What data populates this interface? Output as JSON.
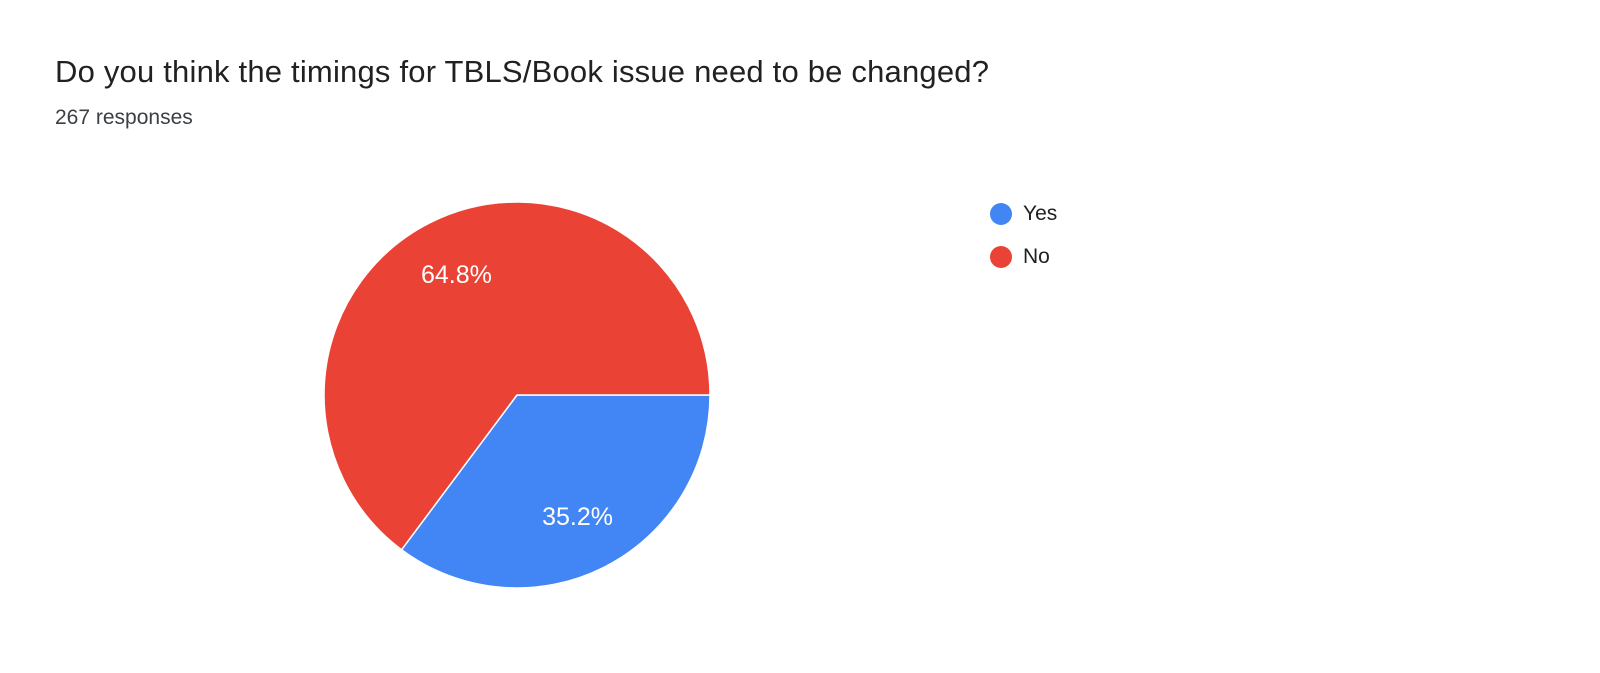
{
  "header": {
    "title": "Do you think the timings for TBLS/Book issue need to be changed?",
    "responses_label": "267 responses"
  },
  "chart_data": {
    "type": "pie",
    "title": "Do you think the timings for TBLS/Book issue need to be changed?",
    "responses_count": 267,
    "legend_position": "right",
    "start_angle_deg": 0,
    "direction": "clockwise",
    "slices": [
      {
        "label": "Yes",
        "value": 35.2,
        "display": "35.2%",
        "color": "#4285f4"
      },
      {
        "label": "No",
        "value": 64.8,
        "display": "64.8%",
        "color": "#ea4335"
      }
    ]
  },
  "colors": {
    "slice_label_text": "#ffffff",
    "title_text": "#212121",
    "background": "#ffffff"
  }
}
